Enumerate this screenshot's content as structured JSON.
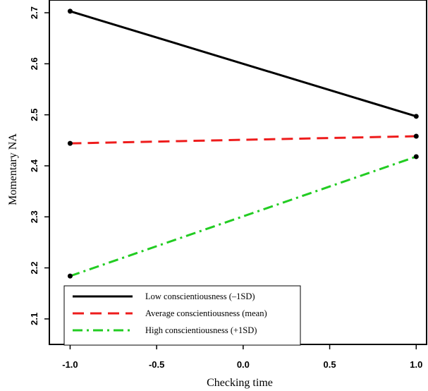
{
  "chart_data": {
    "type": "line",
    "xlabel": "Checking time",
    "ylabel": "Momentary NA",
    "xlim": [
      -1.12,
      1.06
    ],
    "ylim": [
      2.05,
      2.725
    ],
    "x_ticks": [
      -1.0,
      -0.5,
      0.0,
      0.5,
      1.0
    ],
    "x_tick_labels": [
      "-1.0",
      "-0.5",
      "0.0",
      "0.5",
      "1.0"
    ],
    "y_ticks": [
      2.1,
      2.2,
      2.3,
      2.4,
      2.5,
      2.6,
      2.7
    ],
    "y_tick_labels": [
      "2.1",
      "2.2",
      "2.3",
      "2.4",
      "2.5",
      "2.6",
      "2.7"
    ],
    "grid": false,
    "legend_position": "bottom-left",
    "x": [
      -1.0,
      1.0
    ],
    "series": [
      {
        "name": "Low conscientiousness (–1SD)",
        "values": [
          2.703,
          2.497
        ],
        "color": "#000000",
        "dash": "solid"
      },
      {
        "name": "Average conscientiousness (mean)",
        "values": [
          2.444,
          2.458
        ],
        "color": "#ee1c1c",
        "dash": "dashed"
      },
      {
        "name": "High conscientiousness (+1SD)",
        "values": [
          2.184,
          2.418
        ],
        "color": "#22cc22",
        "dash": "dotdash"
      }
    ]
  }
}
